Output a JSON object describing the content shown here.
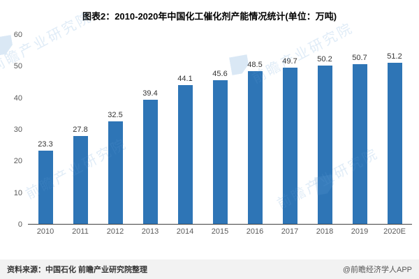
{
  "chart_data": {
    "type": "bar",
    "title": "图表2：2010-2020年中国化工催化剂产能情况统计(单位：万吨)",
    "categories": [
      "2010",
      "2011",
      "2012",
      "2013",
      "2014",
      "2015",
      "2016",
      "2017",
      "2018",
      "2019",
      "2020E"
    ],
    "values": [
      23.3,
      27.8,
      32.5,
      39.4,
      44.1,
      45.6,
      48.5,
      49.7,
      50.2,
      50.7,
      51.2
    ],
    "xlabel": "",
    "ylabel": "",
    "ylim": [
      0,
      60
    ],
    "yticks": [
      0,
      10,
      20,
      30,
      40,
      50,
      60
    ],
    "bar_color": "#2e75b6",
    "grid": false,
    "legend": false
  },
  "footer": {
    "source": "资料来源：中国石化 前瞻产业研究院整理",
    "credit": "@前瞻经济学人APP"
  },
  "watermark": {
    "text": "前瞻产业研究院",
    "color": "#5b9bd5"
  }
}
